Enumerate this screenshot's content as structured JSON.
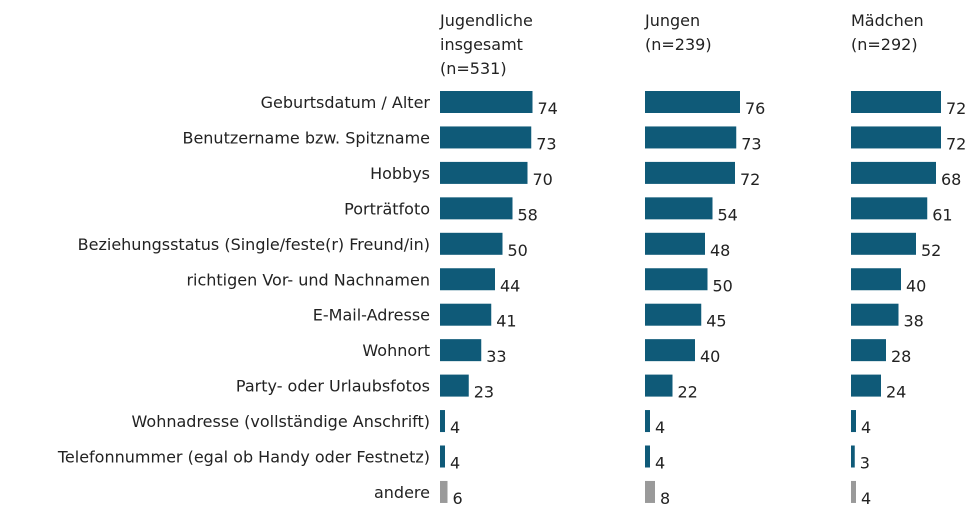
{
  "chart_data": {
    "type": "bar",
    "categories": [
      "Geburtsdatum / Alter",
      "Benutzername bzw. Spitzname",
      "Hobbys",
      "Porträtfoto",
      "Beziehungsstatus (Single/feste(r) Freund/in)",
      "richtigen Vor- und Nachnamen",
      "E-Mail-Adresse",
      "Wohnort",
      "Party- oder Urlaubsfotos",
      "Wohnadresse (vollständige Anschrift)",
      "Telefonnummer (egal ob Handy oder Festnetz)",
      "andere"
    ],
    "bar_colors": [
      "#0f5a78",
      "#0f5a78",
      "#0f5a78",
      "#0f5a78",
      "#0f5a78",
      "#0f5a78",
      "#0f5a78",
      "#0f5a78",
      "#0f5a78",
      "#0f5a78",
      "#0f5a78",
      "#9a9a9a"
    ],
    "series": [
      {
        "name": [
          "Jugendliche",
          "insgesamt",
          "(n=531)"
        ],
        "values": [
          74,
          73,
          70,
          58,
          50,
          44,
          41,
          33,
          23,
          4,
          4,
          6
        ]
      },
      {
        "name": [
          "Jungen",
          "(n=239)"
        ],
        "values": [
          76,
          73,
          72,
          54,
          48,
          50,
          45,
          40,
          22,
          4,
          4,
          8
        ]
      },
      {
        "name": [
          "Mädchen",
          "(n=292)"
        ],
        "values": [
          72,
          72,
          68,
          61,
          52,
          40,
          38,
          28,
          24,
          4,
          3,
          4
        ]
      }
    ]
  }
}
